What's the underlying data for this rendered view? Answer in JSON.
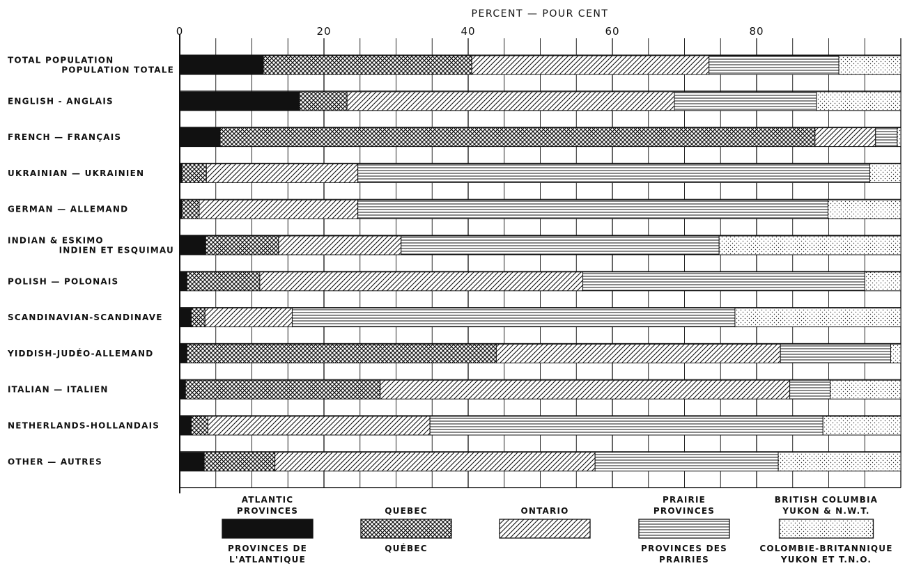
{
  "chart_data": {
    "type": "bar",
    "stacked": true,
    "orientation": "horizontal",
    "x_axis_title": "PERCENT — POUR CENT",
    "xlim": [
      0,
      100
    ],
    "x_ticks": [
      {
        "value": 0,
        "label": "0"
      },
      {
        "value": 20,
        "label": "20"
      },
      {
        "value": 40,
        "label": "40"
      },
      {
        "value": 60,
        "label": "60"
      },
      {
        "value": 80,
        "label": "80"
      }
    ],
    "grid": true,
    "legend_position": "bottom",
    "categories": [
      [
        "TOTAL POPULATION",
        "POPULATION TOTALE"
      ],
      [
        "ENGLISH - ANGLAIS"
      ],
      [
        "FRENCH — FRANÇAIS"
      ],
      [
        "UKRAINIAN — UKRAINIEN"
      ],
      [
        "GERMAN — ALLEMAND"
      ],
      [
        "INDIAN & ESKIMO",
        "INDIEN ET ESQUIMAU"
      ],
      [
        "POLISH — POLONAIS"
      ],
      [
        "SCANDINAVIAN-SCANDINAVE"
      ],
      [
        "YIDDISH-JUDÉO-ALLEMAND"
      ],
      [
        "ITALIAN — ITALIEN"
      ],
      [
        "NETHERLANDS-HOLLANDAIS"
      ],
      [
        "OTHER — AUTRES"
      ]
    ],
    "series": [
      {
        "name": [
          "ATLANTIC",
          "PROVINCES"
        ],
        "name_fr": [
          "PROVINCES DE",
          "L'ATLANTIQUE"
        ],
        "pattern": "solid",
        "values": [
          11.6,
          16.6,
          5.6,
          0.3,
          0.3,
          3.6,
          1.0,
          1.6,
          1.0,
          0.8,
          1.6,
          3.4
        ]
      },
      {
        "name": [
          "QUEBEC"
        ],
        "name_fr": [
          "QUÉBEC"
        ],
        "pattern": "crosshatch",
        "values": [
          28.9,
          6.6,
          82.5,
          3.4,
          2.4,
          10.1,
          10.1,
          1.9,
          42.9,
          27.0,
          2.3,
          9.8
        ]
      },
      {
        "name": [
          "ONTARIO"
        ],
        "name_fr": [],
        "pattern": "diagonal",
        "values": [
          32.9,
          45.4,
          8.4,
          21.0,
          22.0,
          17.0,
          44.8,
          12.1,
          39.4,
          56.8,
          30.8,
          44.4
        ]
      },
      {
        "name": [
          "PRAIRIE",
          "PROVINCES"
        ],
        "name_fr": [
          "PROVINCES DES",
          "PRAIRIES"
        ],
        "pattern": "horizontal",
        "values": [
          18.0,
          19.7,
          3.0,
          71.0,
          65.2,
          44.1,
          39.1,
          61.4,
          15.3,
          5.6,
          54.5,
          25.4
        ]
      },
      {
        "name": [
          "BRITISH COLUMBIA",
          "YUKON & N.W.T."
        ],
        "name_fr": [
          "COLOMBIE-BRITANNIQUE",
          "YUKON ET T.N.O."
        ],
        "pattern": "dotted",
        "values": [
          8.6,
          11.7,
          0.5,
          4.3,
          10.1,
          25.2,
          5.0,
          23.0,
          1.4,
          9.8,
          10.8,
          17.0
        ]
      }
    ]
  }
}
